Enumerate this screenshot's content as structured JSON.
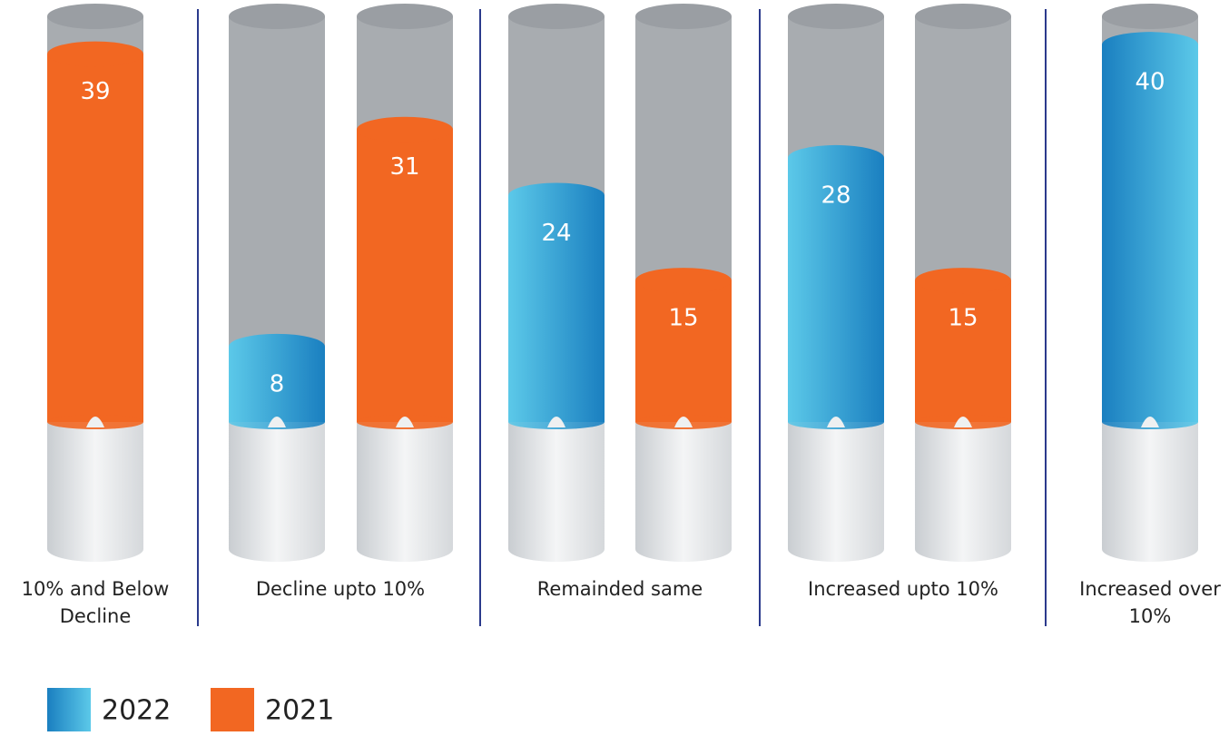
{
  "chart_data": {
    "type": "cylinder-bar",
    "categories": [
      "10% and Below Decline",
      "Decline upto 10%",
      "Remainded same",
      "Increased upto 10%",
      "Increased over 10%"
    ],
    "series": [
      {
        "name": "2022",
        "color": "#1e8dcc",
        "values": [
          null,
          8,
          24,
          28,
          40
        ]
      },
      {
        "name": "2021",
        "color": "#f26722",
        "values": [
          39,
          31,
          15,
          15,
          null
        ]
      }
    ],
    "ylim": [
      0,
      43
    ]
  }
}
